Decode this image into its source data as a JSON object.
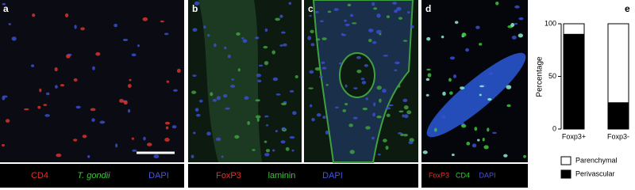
{
  "panels": [
    {
      "label": "a"
    },
    {
      "label": "b"
    },
    {
      "label": "c"
    },
    {
      "label": "d"
    }
  ],
  "captions": [
    [
      {
        "text": "CD4",
        "color": "#e8302a"
      },
      {
        "text": "T. gondii",
        "color": "#3ec43a",
        "italic": true
      },
      {
        "text": "DAPI",
        "color": "#4a55d8"
      }
    ],
    [
      {
        "text": "FoxP3",
        "color": "#e8302a"
      },
      {
        "text": "laminin",
        "color": "#3ec43a"
      },
      {
        "text": "DAPI",
        "color": "#4a55d8"
      }
    ],
    [
      {
        "text": "FoxP3",
        "color": "#e8302a"
      },
      {
        "text": "CD4",
        "color": "#3ec43a"
      },
      {
        "text": "DAPI",
        "color": "#4a55d8"
      }
    ]
  ],
  "chart_data": {
    "type": "bar",
    "stacked": true,
    "panel_label": "e",
    "ylabel": "Percentage",
    "categories": [
      "Foxp3+",
      "Foxp3-"
    ],
    "series": [
      {
        "name": "Perivascular",
        "color": "#000000",
        "values": [
          90,
          25
        ]
      },
      {
        "name": "Parenchymal",
        "color": "#ffffff",
        "values": [
          10,
          75
        ]
      }
    ],
    "ylim": [
      0,
      100
    ],
    "yticks": [
      0,
      50,
      100
    ]
  }
}
